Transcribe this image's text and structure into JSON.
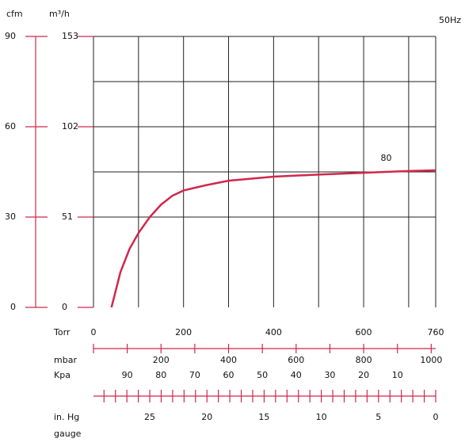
{
  "chart_data": {
    "type": "line",
    "frequency": "50Hz",
    "y_label": "m³/h",
    "y2_label": "cfm",
    "x_label": "Torr",
    "annotation": "80",
    "color": "#d0284a",
    "x": [
      40,
      60,
      80,
      100,
      125,
      150,
      175,
      200,
      250,
      300,
      400,
      500,
      600,
      700,
      760
    ],
    "values": [
      0,
      20,
      33,
      42,
      51,
      58,
      63,
      66,
      69,
      71.5,
      73.8,
      75,
      76,
      77,
      77.4
    ],
    "xlim": [
      0,
      760
    ],
    "xticks": [
      0,
      200,
      400,
      600,
      760
    ],
    "xgrid": [
      0,
      100,
      200,
      300,
      400,
      500,
      600,
      700,
      760
    ],
    "ylim": [
      0,
      153
    ],
    "yticks": [
      0,
      51,
      102,
      153
    ],
    "ygrid": [
      51,
      76.5,
      102,
      127.5,
      153
    ],
    "y2lim": [
      0,
      90
    ],
    "y2ticks": [
      0,
      30,
      60,
      90
    ],
    "mbar": {
      "label": "mbar",
      "ticks": [
        0,
        100,
        200,
        300,
        400,
        500,
        600,
        700,
        800,
        900,
        1000
      ],
      "labels": [
        200,
        400,
        600,
        800,
        1000
      ]
    },
    "kpa": {
      "label": "Kpa",
      "labels": [
        90,
        80,
        70,
        60,
        50,
        40,
        30,
        20,
        10
      ]
    },
    "inhg": {
      "label": "in. Hg",
      "label2": "gauge",
      "ticks": [
        0,
        1,
        2,
        3,
        4,
        5,
        6,
        7,
        8,
        9,
        10,
        11,
        12,
        13,
        14,
        15,
        16,
        17,
        18,
        19,
        20,
        21,
        22,
        23,
        24,
        25,
        26,
        27,
        28,
        29
      ],
      "labels": [
        25,
        20,
        15,
        10,
        5,
        0
      ]
    }
  }
}
